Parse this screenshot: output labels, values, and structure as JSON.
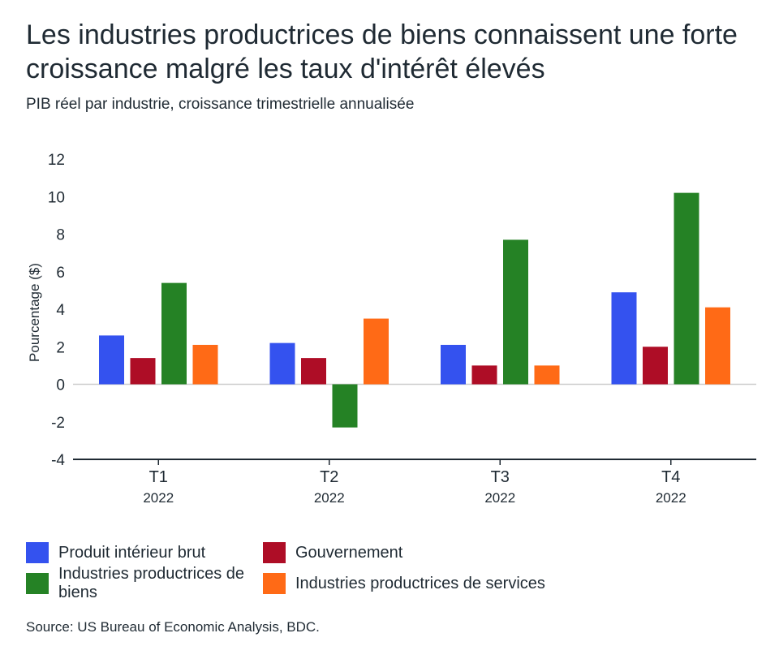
{
  "title": "Les industries productrices de biens connaissent une forte croissance malgré les taux d'intérêt élevés",
  "subtitle": "PIB réel par industrie, croissance trimestrielle annualisée",
  "source": "Source: US Bureau of Economic Analysis, BDC.",
  "colors": {
    "gdp": "#3452ef",
    "government": "#ae0d26",
    "goods": "#258225",
    "services": "#ff6a16",
    "axis": "#1f2a33",
    "grid": "#cccccc"
  },
  "chart_data": {
    "type": "bar",
    "title": "Les industries productrices de biens connaissent une forte croissance malgré les taux d'intérêt élevés",
    "subtitle": "PIB réel par industrie, croissance trimestrielle annualisée",
    "ylabel": "Pourcentage ($)",
    "xlabel": "",
    "ylim": [
      -4,
      12
    ],
    "yticks": [
      "-4",
      "-2",
      "0",
      "2",
      "4",
      "6",
      "8",
      "10",
      "12"
    ],
    "categories": [
      "T1",
      "T2",
      "T3",
      "T4"
    ],
    "category_sublabels": [
      "2022",
      "2022",
      "2022",
      "2022"
    ],
    "legend_position": "bottom",
    "series": [
      {
        "name": "Produit intérieur brut",
        "color_key": "gdp",
        "values": [
          2.6,
          2.2,
          2.1,
          4.9
        ]
      },
      {
        "name": "Gouvernement",
        "color_key": "government",
        "values": [
          1.4,
          1.4,
          1.0,
          2.0
        ]
      },
      {
        "name": "Industries productrices de biens",
        "color_key": "goods",
        "values": [
          5.4,
          -2.3,
          7.7,
          10.2
        ]
      },
      {
        "name": "Industries productrices de services",
        "color_key": "services",
        "values": [
          2.1,
          3.5,
          1.0,
          4.1
        ]
      }
    ]
  }
}
